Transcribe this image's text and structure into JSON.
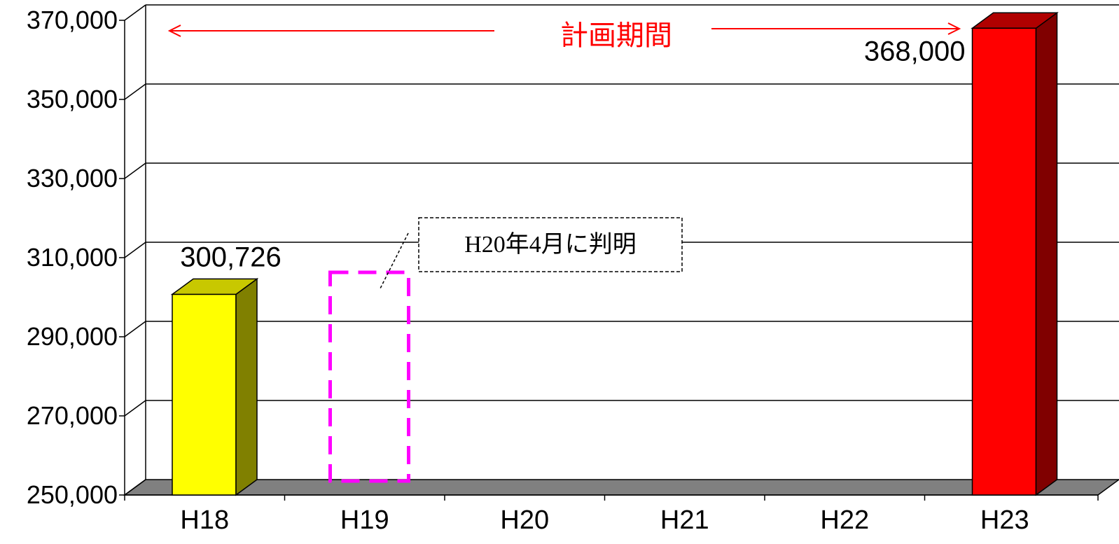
{
  "chart_data": {
    "type": "bar",
    "categories": [
      "H18",
      "H19",
      "H20",
      "H21",
      "H22",
      "H23"
    ],
    "series": [
      {
        "values": [
          300726,
          null,
          null,
          null,
          null,
          368000
        ]
      }
    ],
    "data_labels": [
      "300,726",
      "",
      "",
      "",
      "",
      "368,000"
    ],
    "ylim": [
      250000,
      370000
    ],
    "yticks": [
      250000,
      270000,
      290000,
      310000,
      330000,
      350000,
      370000
    ],
    "ytick_labels": [
      "250,000",
      "270,000",
      "290,000",
      "310,000",
      "330,000",
      "350,000",
      "370,000"
    ],
    "grid": true,
    "annotations": {
      "period_label": "計画期間",
      "note": "H20年4月に判明"
    },
    "colors": {
      "h18_front": "#ffff00",
      "h18_side": "#808000",
      "h18_top": "#c8c800",
      "h23_front": "#ff0000",
      "h23_side": "#800000",
      "h23_top": "#b00000",
      "floor": "#808080",
      "pending_outline": "#ff00ff",
      "period": "#ff0000"
    }
  }
}
